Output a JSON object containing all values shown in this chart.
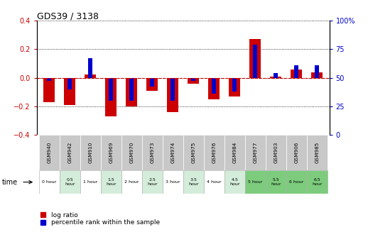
{
  "title": "GDS39 / 3138",
  "samples": [
    "GSM940",
    "GSM942",
    "GSM910",
    "GSM969",
    "GSM970",
    "GSM973",
    "GSM974",
    "GSM975",
    "GSM976",
    "GSM984",
    "GSM977",
    "GSM903",
    "GSM906",
    "GSM985"
  ],
  "time_labels": [
    "0 hour",
    "0.5\nhour",
    "1 hour",
    "1.5\nhour",
    "2 hour",
    "2.5\nhour",
    "3 hour",
    "3.5\nhour",
    "4 hour",
    "4.5\nhour",
    "5 hour",
    "5.5\nhour",
    "6 hour",
    "6.5\nhour"
  ],
  "time_colors": [
    "#ffffff",
    "#d4edda",
    "#ffffff",
    "#d4edda",
    "#ffffff",
    "#d4edda",
    "#ffffff",
    "#d4edda",
    "#ffffff",
    "#d4edda",
    "#7dcc7d",
    "#7dcc7d",
    "#7dcc7d",
    "#7dcc7d"
  ],
  "log_ratio": [
    -0.17,
    -0.19,
    0.025,
    -0.27,
    -0.2,
    -0.09,
    -0.24,
    -0.04,
    -0.15,
    -0.13,
    0.27,
    0.01,
    0.06,
    0.04
  ],
  "percentile": [
    47,
    40,
    67,
    30,
    30,
    42,
    30,
    47,
    36,
    38,
    79,
    54,
    61,
    61
  ],
  "ylim_left": [
    -0.4,
    0.4
  ],
  "ylim_right": [
    0,
    100
  ],
  "yticks_left": [
    -0.4,
    -0.2,
    0.0,
    0.2,
    0.4
  ],
  "yticks_right": [
    0,
    25,
    50,
    75,
    100
  ],
  "bar_color_red": "#cc0000",
  "bar_color_blue": "#0000cc",
  "zero_line_color": "#cc0000",
  "sample_bg_color": "#c8c8c8",
  "legend_red": "log ratio",
  "legend_blue": "percentile rank within the sample"
}
